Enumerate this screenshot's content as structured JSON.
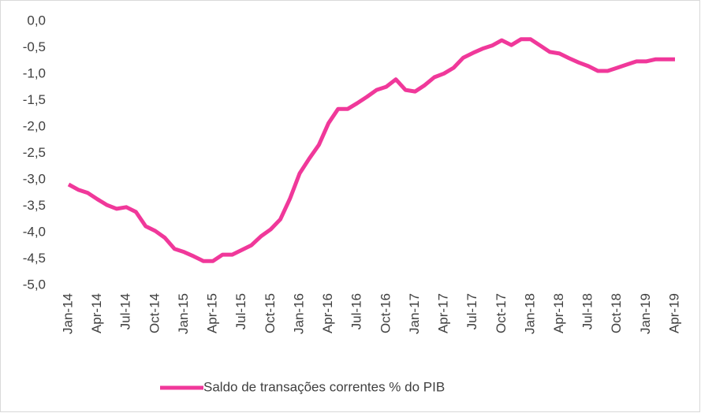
{
  "chart_data": {
    "type": "line",
    "categories": [
      "Jan-14",
      null,
      null,
      "Apr-14",
      null,
      null,
      "Jul-14",
      null,
      null,
      "Oct-14",
      null,
      null,
      "Jan-15",
      null,
      null,
      "Apr-15",
      null,
      null,
      "Jul-15",
      null,
      null,
      "Oct-15",
      null,
      null,
      "Jan-16",
      null,
      null,
      "Apr-16",
      null,
      null,
      "Jul-16",
      null,
      null,
      "Oct-16",
      null,
      null,
      "Jan-17",
      null,
      null,
      "Apr-17",
      null,
      null,
      "Jul-17",
      null,
      null,
      "Oct-17",
      null,
      null,
      "Jan-18",
      null,
      null,
      "Apr-18",
      null,
      null,
      "Jul-18",
      null,
      null,
      "Oct-18",
      null,
      null,
      "Jan-19",
      null,
      null,
      "Apr-19"
    ],
    "series": [
      {
        "name": "Saldo de transações correntes % do PIB",
        "color": "#f0389a",
        "values": [
          -3.09,
          -3.19,
          -3.25,
          -3.37,
          -3.48,
          -3.55,
          -3.52,
          -3.61,
          -3.88,
          -3.97,
          -4.1,
          -4.31,
          -4.37,
          -4.45,
          -4.54,
          -4.54,
          -4.42,
          -4.42,
          -4.33,
          -4.24,
          -4.07,
          -3.94,
          -3.75,
          -3.36,
          -2.88,
          -2.6,
          -2.34,
          -1.93,
          -1.66,
          -1.66,
          -1.55,
          -1.43,
          -1.3,
          -1.24,
          -1.1,
          -1.3,
          -1.33,
          -1.21,
          -1.06,
          -0.99,
          -0.88,
          -0.69,
          -0.6,
          -0.52,
          -0.46,
          -0.36,
          -0.45,
          -0.34,
          -0.34,
          -0.46,
          -0.58,
          -0.61,
          -0.7,
          -0.78,
          -0.85,
          -0.94,
          -0.94,
          -0.88,
          -0.82,
          -0.76,
          -0.76,
          -0.72,
          -0.72,
          -0.72
        ]
      }
    ],
    "ylim": [
      -5,
      0
    ],
    "yticks": [
      {
        "value": 0,
        "label": "0,0"
      },
      {
        "value": -0.5,
        "label": "-0,5"
      },
      {
        "value": -1,
        "label": "-1,0"
      },
      {
        "value": -1.5,
        "label": "-1,5"
      },
      {
        "value": -2,
        "label": "-2,0"
      },
      {
        "value": -2.5,
        "label": "-2,5"
      },
      {
        "value": -3,
        "label": "-3,0"
      },
      {
        "value": -3.5,
        "label": "-3,5"
      },
      {
        "value": -4,
        "label": "-4,0"
      },
      {
        "value": -4.5,
        "label": "-4,5"
      },
      {
        "value": -5,
        "label": "-5,0"
      }
    ],
    "grid": false,
    "legend": "bottom"
  }
}
